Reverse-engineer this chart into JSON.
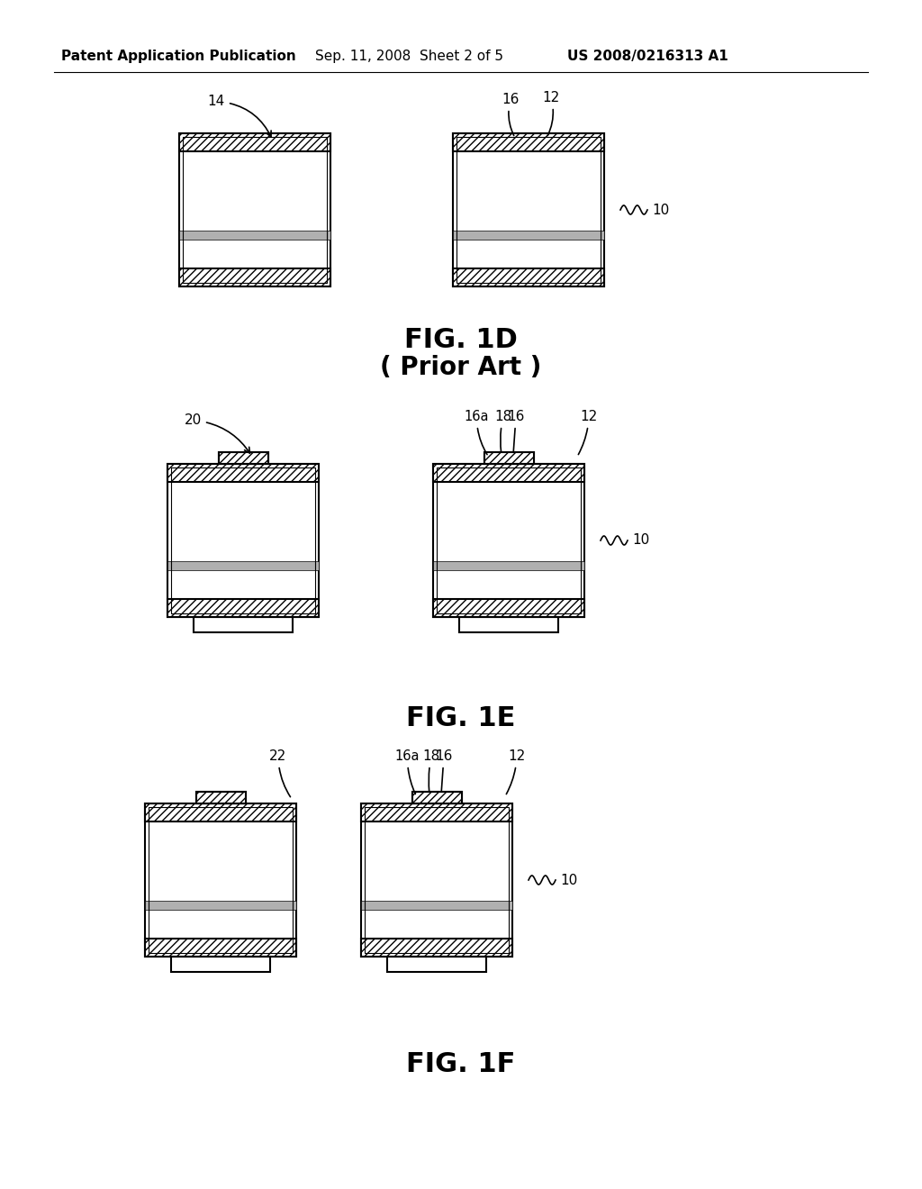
{
  "header_left": "Patent Application Publication",
  "header_mid": "Sep. 11, 2008  Sheet 2 of 5",
  "header_right": "US 2008/0216313 A1",
  "fig1d_label": "FIG. 1D",
  "fig1d_sub": "( Prior Art )",
  "fig1e_label": "FIG. 1E",
  "fig1f_label": "FIG. 1F",
  "bg_color": "#ffffff",
  "line_color": "#000000"
}
